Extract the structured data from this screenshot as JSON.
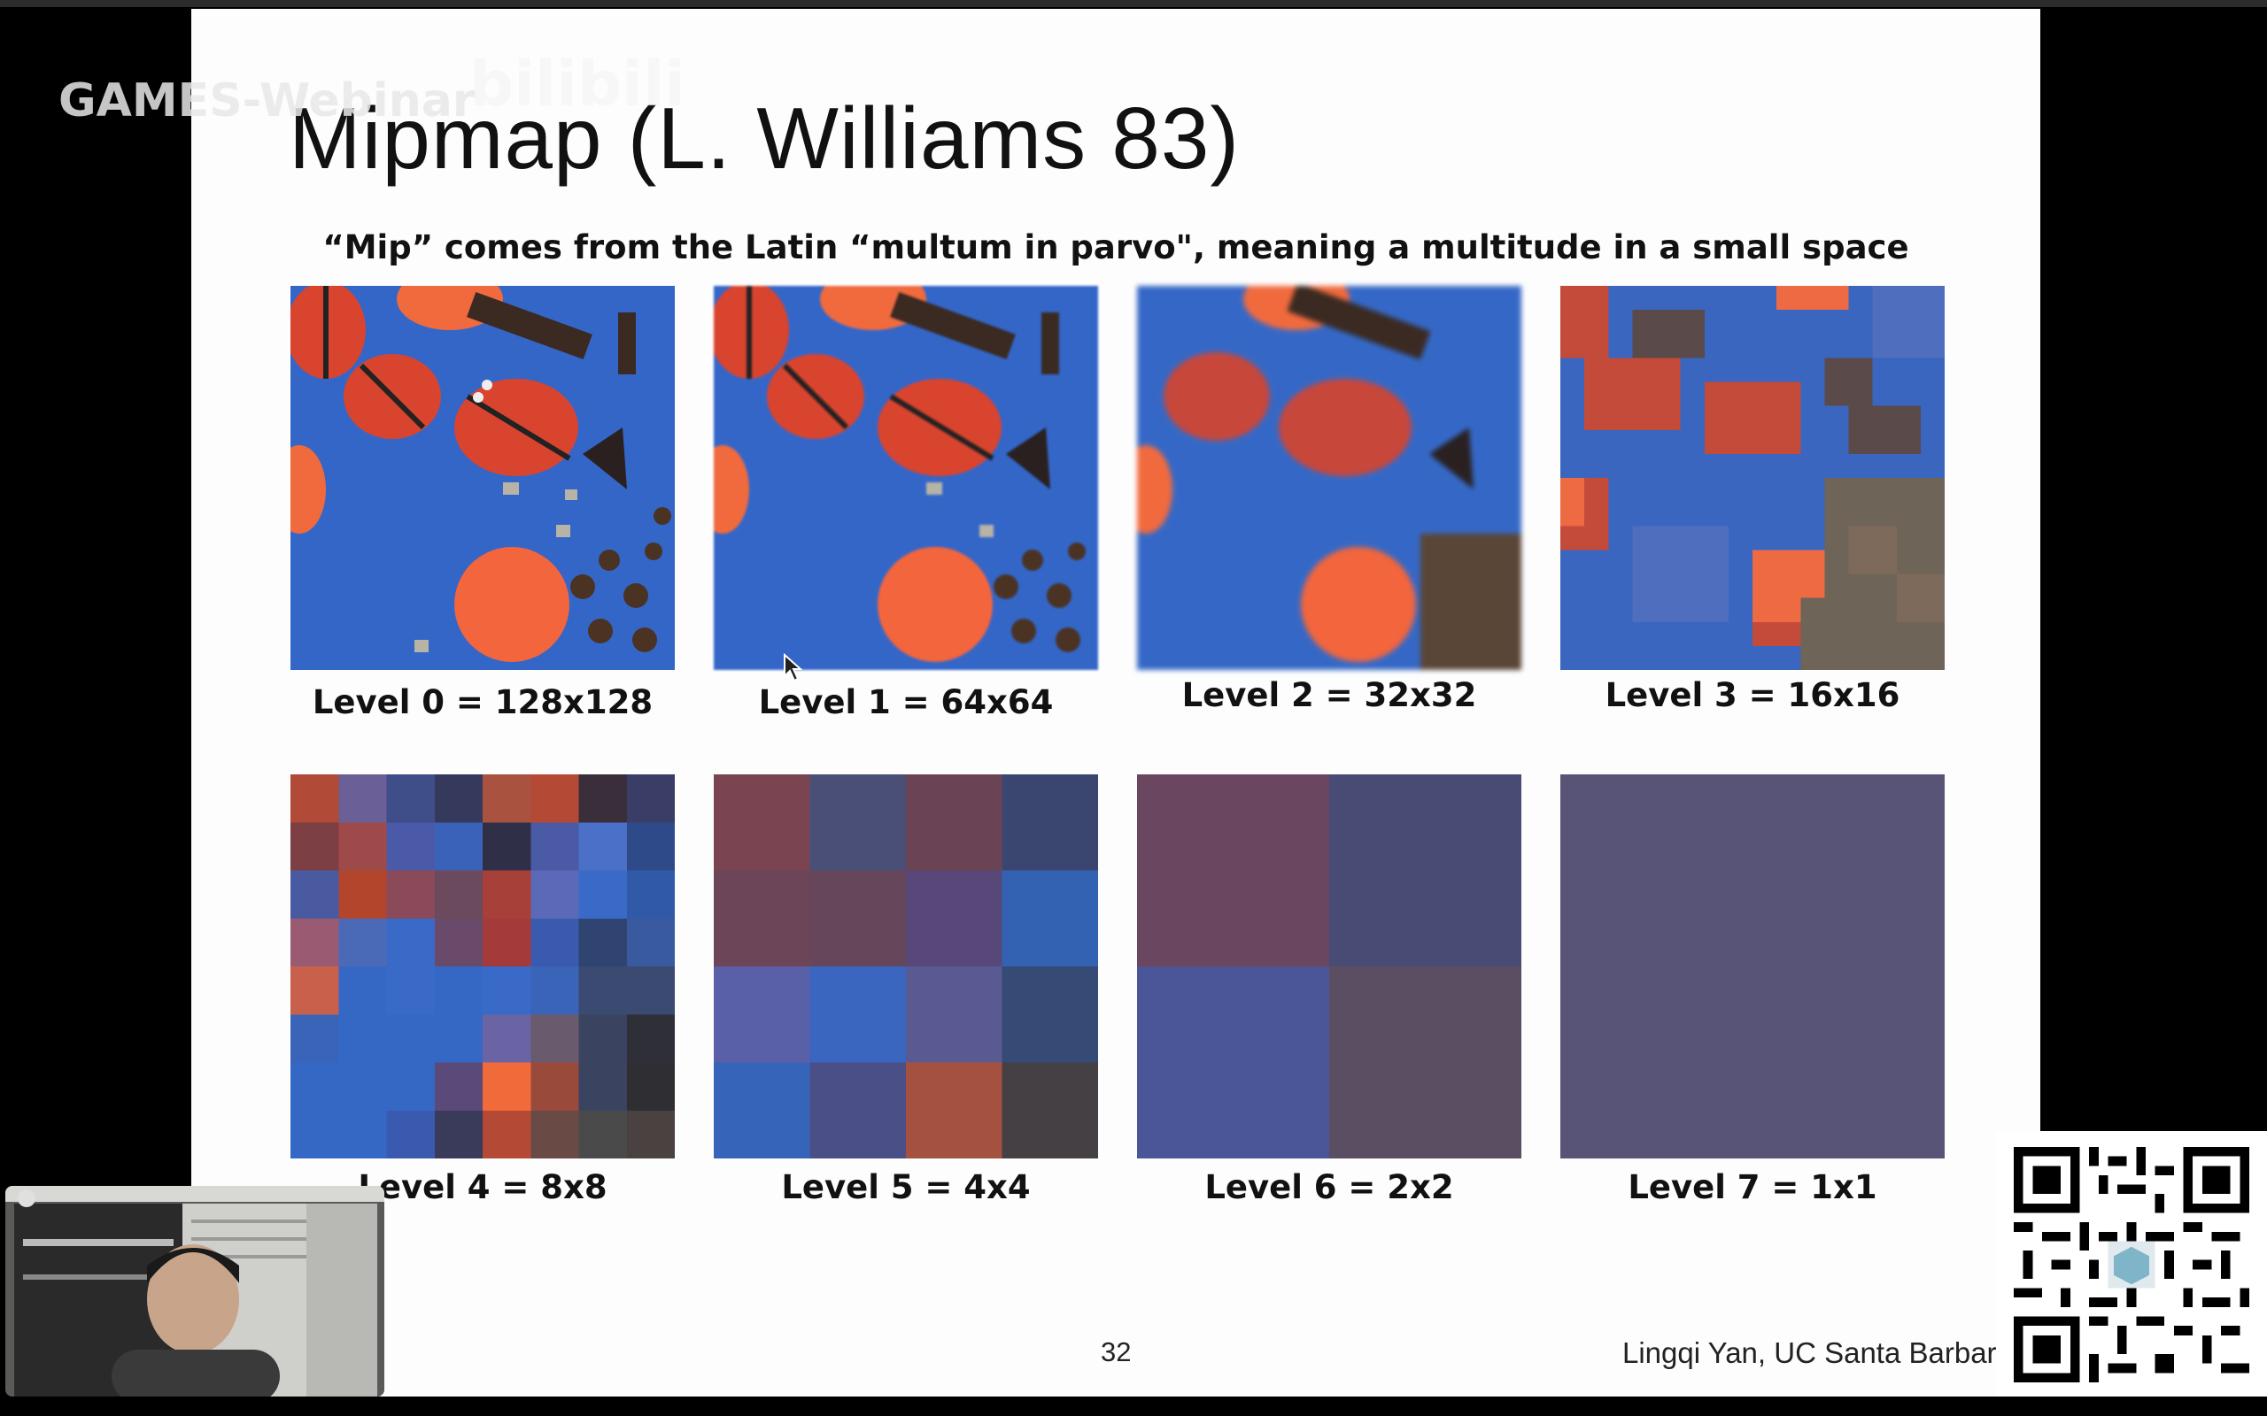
{
  "overlay": {
    "watermark": "GAMES-Webinar",
    "platform_logo": "bilibili"
  },
  "slide": {
    "title": "Mipmap (L. Williams 83)",
    "subtitle": "“Mip” comes from the Latin “multum in parvo\", meaning a multitude in a small space",
    "levels": [
      {
        "label": "Level 0 = 128x128"
      },
      {
        "label": "Level 1 = 64x64"
      },
      {
        "label": "Level 2 = 32x32"
      },
      {
        "label": "Level 3 = 16x16"
      },
      {
        "label": "Level 4 = 8x8"
      },
      {
        "label": "Level 5 = 4x4"
      },
      {
        "label": "Level 6 = 2x2"
      },
      {
        "label": "Level 7 = 1x1"
      }
    ],
    "page_number": "32",
    "credit": "Lingqi Yan, UC Santa Barbara"
  },
  "colors": {
    "slide_bg": "#fdfdfd",
    "texture_blue": "#3466c8",
    "ladybug_red": "#d9442e",
    "level7_fill": "#575477"
  },
  "icons": {
    "cursor": "mouse-pointer-icon",
    "qr": "qr-code-icon",
    "webcam": "presenter-webcam"
  }
}
